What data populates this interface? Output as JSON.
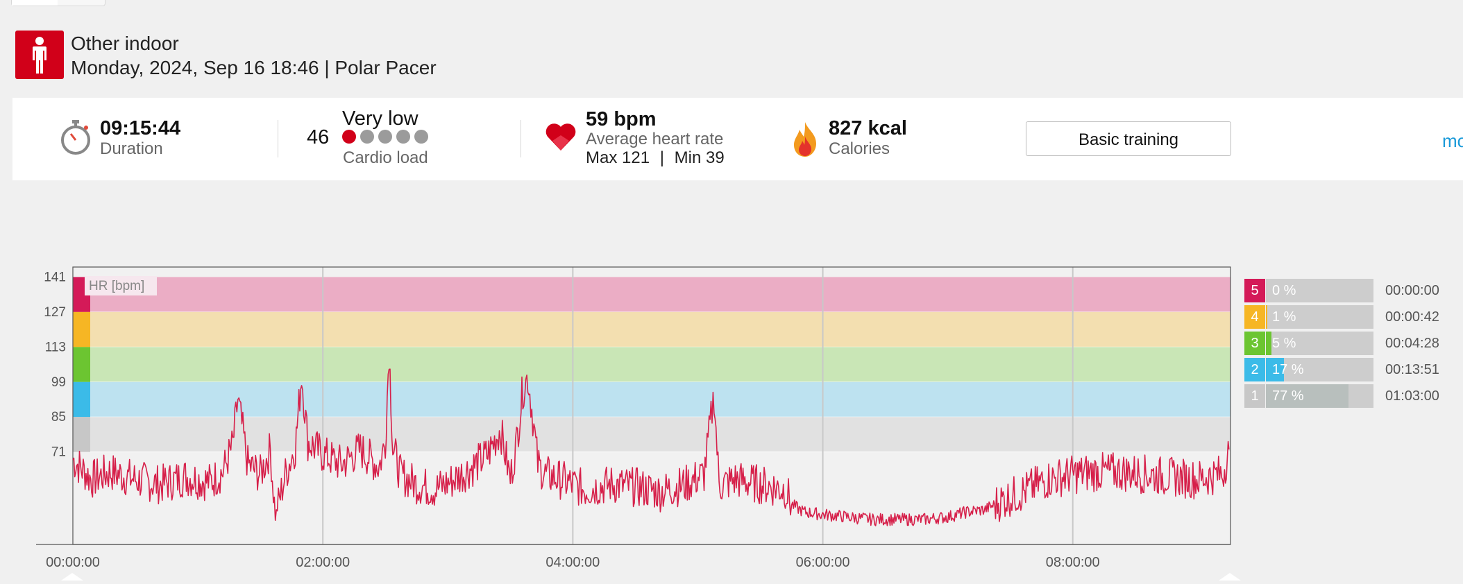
{
  "header": {
    "sport": "Other indoor",
    "datetime": "Monday, 2024, Sep 16 18:46 | Polar Pacer"
  },
  "summary": {
    "duration": {
      "value": "09:15:44",
      "label": "Duration",
      "icon": "stopwatch-icon"
    },
    "cardio": {
      "value": "46",
      "level": "Very low",
      "label": "Cardio load",
      "dots_total": 5,
      "dots_filled": 1
    },
    "heart_rate": {
      "value": "59 bpm",
      "label": "Average heart rate",
      "max_label": "Max 121",
      "separator": "|",
      "min_label": "Min 39",
      "icon": "heart-icon"
    },
    "calories": {
      "value": "827 kcal",
      "label": "Calories",
      "icon": "flame-icon"
    },
    "training_button": "Basic training",
    "more_link": "mo"
  },
  "chart_data": {
    "type": "line",
    "label": "HR [bpm]",
    "y_ticks": [
      "141",
      "127",
      "113",
      "99",
      "85",
      "71"
    ],
    "x_ticks": [
      "00:00:00",
      "02:00:00",
      "04:00:00",
      "06:00:00",
      "08:00:00"
    ],
    "ylim": [
      34,
      145
    ],
    "xlim_hours": [
      0,
      9.262
    ],
    "zone_bands": [
      {
        "zone": 5,
        "from": 127,
        "to": 141,
        "color": "#ebadc5"
      },
      {
        "zone": 4,
        "from": 113,
        "to": 127,
        "color": "#f3dfb0"
      },
      {
        "zone": 3,
        "from": 99,
        "to": 113,
        "color": "#c9e6b6"
      },
      {
        "zone": 2,
        "from": 85,
        "to": 99,
        "color": "#bde2f0"
      },
      {
        "zone": 1,
        "from": 71,
        "to": 85,
        "color": "#e1e1e1"
      }
    ],
    "series": [
      {
        "color": "#d6204a",
        "x": [
          0,
          0.15,
          0.3,
          0.5,
          0.7,
          0.9,
          1.1,
          1.2,
          1.28,
          1.32,
          1.4,
          1.5,
          1.58,
          1.62,
          1.7,
          1.78,
          1.83,
          1.88,
          2.0,
          2.15,
          2.3,
          2.45,
          2.5,
          2.53,
          2.56,
          2.62,
          2.75,
          2.9,
          3.05,
          3.2,
          3.32,
          3.42,
          3.5,
          3.55,
          3.6,
          3.64,
          3.68,
          3.72,
          3.78,
          3.9,
          4.1,
          4.3,
          4.5,
          4.7,
          4.9,
          5.05,
          5.13,
          5.17,
          5.2,
          5.3,
          5.5,
          5.7,
          5.75,
          5.85,
          6.0,
          6.2,
          6.4,
          6.6,
          6.8,
          7.0,
          7.15,
          7.3,
          7.45,
          7.6,
          7.8,
          8.0,
          8.2,
          8.4,
          8.6,
          8.8,
          9.0,
          9.15,
          9.2,
          9.25
        ],
        "y": [
          68,
          60,
          63,
          60,
          58,
          61,
          59,
          63,
          74,
          92,
          66,
          62,
          72,
          45,
          62,
          73,
          102,
          75,
          70,
          66,
          72,
          65,
          75,
          112,
          73,
          62,
          58,
          56,
          60,
          65,
          70,
          80,
          60,
          75,
          96,
          101,
          85,
          66,
          62,
          60,
          56,
          58,
          57,
          55,
          58,
          62,
          94,
          58,
          58,
          60,
          58,
          56,
          50,
          47,
          46,
          45,
          44,
          44,
          44,
          45,
          47,
          48,
          52,
          55,
          60,
          62,
          63,
          63,
          62,
          61,
          60,
          62,
          62,
          72
        ]
      }
    ]
  },
  "zones": [
    {
      "num": "5",
      "pct": "0 %",
      "pct_value": 0,
      "time": "00:00:00",
      "color": "#d41a58"
    },
    {
      "num": "4",
      "pct": "1 %",
      "pct_value": 1,
      "time": "00:00:42",
      "color": "#f6b624"
    },
    {
      "num": "3",
      "pct": "5 %",
      "pct_value": 5,
      "time": "00:04:28",
      "color": "#6cc531"
    },
    {
      "num": "2",
      "pct": "17 %",
      "pct_value": 17,
      "time": "00:13:51",
      "color": "#3bbbe8"
    },
    {
      "num": "1",
      "pct": "77 %",
      "pct_value": 77,
      "time": "01:03:00",
      "color": "#c7c7c7"
    }
  ]
}
